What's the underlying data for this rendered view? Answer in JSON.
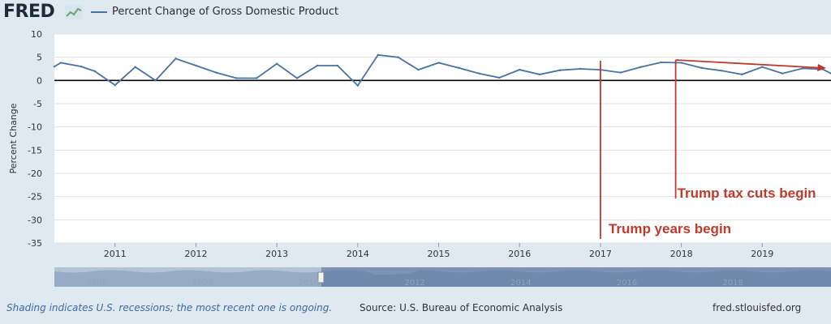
{
  "header": {
    "logo": "FRED",
    "logo_icon": "fred-chart-icon",
    "series_name": "Percent Change of Gross Domestic Product"
  },
  "footer": {
    "note": "Shading indicates U.S. recessions; the most recent one is ongoing.",
    "source": "Source: U.S. Bureau of Economic Analysis",
    "site": "fred.stlouisfed.org"
  },
  "navigator": {
    "year_labels": [
      "2006",
      "2008",
      "2010",
      "2012",
      "2014",
      "2016",
      "2018"
    ]
  },
  "colors": {
    "series": "#4572a7",
    "annotation": "#c0392b",
    "background": "#e1e9f0",
    "plot": "#ffffff"
  },
  "chart_data": {
    "type": "line",
    "title": "",
    "xlabel": "",
    "ylabel": "Percent Change",
    "ylim": [
      -35,
      10
    ],
    "yticks": [
      10,
      5,
      0,
      -5,
      -10,
      -15,
      -20,
      -25,
      -30,
      -35
    ],
    "xlim": [
      2010.25,
      2019.85
    ],
    "xticks": [
      "2011",
      "2012",
      "2013",
      "2014",
      "2015",
      "2016",
      "2017",
      "2018",
      "2019"
    ],
    "grid": "horizontal",
    "series": [
      {
        "name": "Percent Change of Gross Domestic Product",
        "points": [
          [
            2010.25,
            3.0
          ],
          [
            2010.33,
            3.8
          ],
          [
            2010.58,
            3.0
          ],
          [
            2010.75,
            2.0
          ],
          [
            2011.0,
            -1.0
          ],
          [
            2011.25,
            2.9
          ],
          [
            2011.5,
            0.0
          ],
          [
            2011.75,
            4.7
          ],
          [
            2012.0,
            3.2
          ],
          [
            2012.25,
            1.7
          ],
          [
            2012.5,
            0.5
          ],
          [
            2012.75,
            0.5
          ],
          [
            2013.0,
            3.6
          ],
          [
            2013.25,
            0.5
          ],
          [
            2013.5,
            3.2
          ],
          [
            2013.75,
            3.2
          ],
          [
            2014.0,
            -1.1
          ],
          [
            2014.25,
            5.5
          ],
          [
            2014.5,
            5.0
          ],
          [
            2014.75,
            2.3
          ],
          [
            2015.0,
            3.8
          ],
          [
            2015.25,
            2.7
          ],
          [
            2015.5,
            1.5
          ],
          [
            2015.75,
            0.6
          ],
          [
            2016.0,
            2.3
          ],
          [
            2016.25,
            1.3
          ],
          [
            2016.5,
            2.2
          ],
          [
            2016.75,
            2.5
          ],
          [
            2017.0,
            2.3
          ],
          [
            2017.25,
            1.7
          ],
          [
            2017.5,
            2.9
          ],
          [
            2017.75,
            3.9
          ],
          [
            2018.0,
            3.8
          ],
          [
            2018.25,
            2.7
          ],
          [
            2018.5,
            2.1
          ],
          [
            2018.75,
            1.3
          ],
          [
            2019.0,
            2.9
          ],
          [
            2019.25,
            1.5
          ],
          [
            2019.5,
            2.6
          ],
          [
            2019.75,
            2.4
          ],
          [
            2019.85,
            1.5
          ]
        ]
      }
    ],
    "annotations": [
      {
        "text": "Trump years begin",
        "x": 2017.0
      },
      {
        "text": "Trump tax cuts begin",
        "x": 2017.93
      }
    ]
  }
}
